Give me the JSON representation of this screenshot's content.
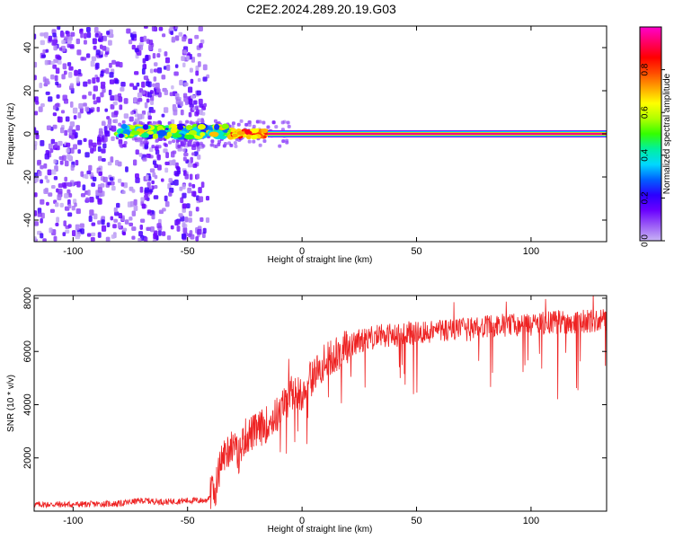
{
  "chart_data": [
    {
      "type": "heatmap",
      "title": "C2E2.2024.289.20.19.G03",
      "xlabel": "Height of straight line (km)",
      "ylabel": "Frequency (Hz)",
      "xlim": [
        -117,
        133
      ],
      "ylim": [
        -50,
        50
      ],
      "x_ticks": [
        -100,
        -50,
        0,
        50,
        100
      ],
      "y_ticks": [
        -40,
        -20,
        0,
        20,
        40
      ],
      "colorbar": {
        "label": "Normalized spectral amplitude",
        "range": [
          0,
          1
        ],
        "ticks": [
          0.0,
          0.2,
          0.4,
          0.6,
          0.8
        ],
        "colors": [
          "#c8b4f5",
          "#9b5cf6",
          "#6a00ff",
          "#2b00ff",
          "#0060ff",
          "#00d8ff",
          "#00f0a0",
          "#33ff00",
          "#b0ff00",
          "#ffff00",
          "#ffa500",
          "#ff4a00",
          "#ff0000",
          "#ff0066",
          "#ff00cc"
        ]
      },
      "regions": [
        {
          "x_range": [
            -117,
            -41
          ],
          "description": "broadband noise, low amplitude (0.0–0.2) spread across all frequencies"
        },
        {
          "x_range": [
            -80,
            -30
          ],
          "freq_center": 1,
          "amplitude_range": [
            0.2,
            0.7
          ]
        },
        {
          "x_range": [
            -30,
            -15
          ],
          "freq_center": 0,
          "amplitude_range": [
            0.6,
            0.9
          ]
        },
        {
          "x_range": [
            -15,
            133
          ],
          "freq_center": 0,
          "amplitude_range": [
            0.85,
            0.95
          ]
        }
      ]
    },
    {
      "type": "line",
      "xlabel": "Height of straight line (km)",
      "ylabel": "SNR (10 * v/v)",
      "xlim": [
        -117,
        133
      ],
      "ylim": [
        0,
        8100
      ],
      "x_ticks": [
        -100,
        -50,
        0,
        50,
        100
      ],
      "y_ticks": [
        2000,
        4000,
        6000,
        8000
      ],
      "series": [
        {
          "color": "#ee2222",
          "x": [
            -117,
            -100,
            -80,
            -70,
            -60,
            -50,
            -42,
            -38,
            -35,
            -33,
            -30,
            -28,
            -25,
            -20,
            -15,
            -10,
            -5,
            0,
            5,
            10,
            15,
            20,
            25,
            30,
            35,
            40,
            50,
            60,
            70,
            80,
            90,
            100,
            110,
            120,
            133
          ],
          "y": [
            250,
            250,
            280,
            400,
            350,
            400,
            400,
            800,
            2000,
            2200,
            2600,
            2000,
            2800,
            3000,
            3300,
            3700,
            4400,
            4500,
            5100,
            5600,
            5900,
            6200,
            6400,
            6500,
            6600,
            6600,
            6700,
            6800,
            6800,
            6900,
            7000,
            7000,
            7100,
            7100,
            7200
          ]
        }
      ]
    }
  ]
}
